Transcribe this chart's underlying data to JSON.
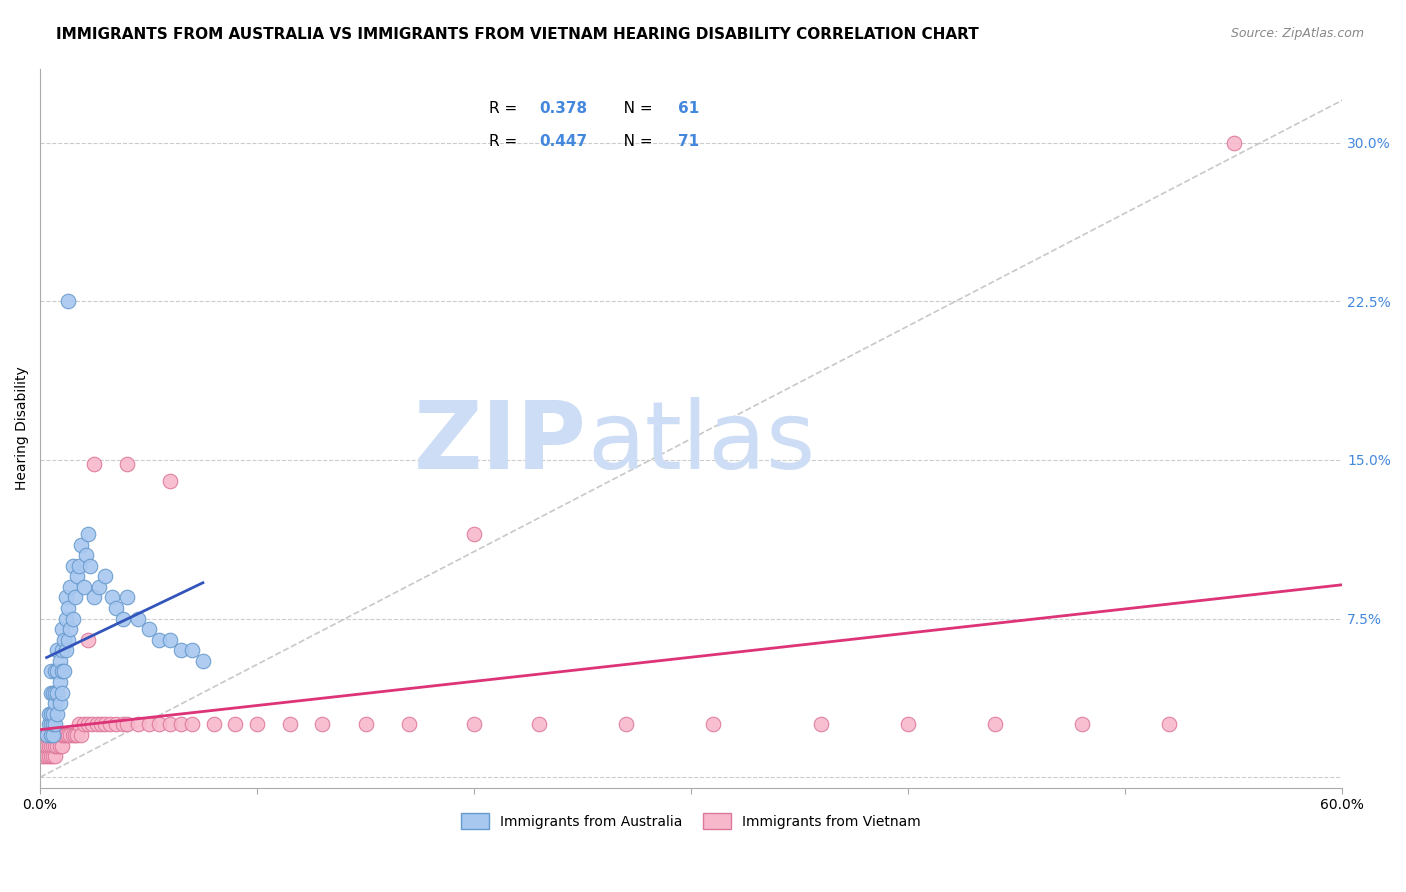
{
  "title": "IMMIGRANTS FROM AUSTRALIA VS IMMIGRANTS FROM VIETNAM HEARING DISABILITY CORRELATION CHART",
  "source": "Source: ZipAtlas.com",
  "ylabel": "Hearing Disability",
  "xlim": [
    0.0,
    0.6
  ],
  "ylim": [
    -0.005,
    0.335
  ],
  "australia_color": "#a8c8f0",
  "australia_edge": "#6699cc",
  "vietnam_color": "#f8b8cc",
  "vietnam_edge": "#dd7799",
  "australia_line_color": "#3355bb",
  "vietnam_line_color": "#dd3377",
  "diag_color": "#bbbbbb",
  "right_tick_color": "#4488dd",
  "legend_label_australia": "Immigrants from Australia",
  "legend_label_vietnam": "Immigrants from Vietnam",
  "title_fontsize": 11,
  "axis_label_fontsize": 10,
  "tick_fontsize": 10,
  "watermark_zip": "ZIP",
  "watermark_atlas": "atlas",
  "aus_x": [
    0.003,
    0.004,
    0.004,
    0.005,
    0.005,
    0.005,
    0.005,
    0.005,
    0.006,
    0.006,
    0.006,
    0.006,
    0.007,
    0.007,
    0.007,
    0.007,
    0.008,
    0.008,
    0.008,
    0.008,
    0.009,
    0.009,
    0.009,
    0.01,
    0.01,
    0.01,
    0.01,
    0.011,
    0.011,
    0.012,
    0.012,
    0.012,
    0.013,
    0.013,
    0.014,
    0.014,
    0.015,
    0.015,
    0.016,
    0.017,
    0.018,
    0.019,
    0.02,
    0.021,
    0.022,
    0.023,
    0.025,
    0.027,
    0.03,
    0.033,
    0.035,
    0.038,
    0.04,
    0.045,
    0.05,
    0.055,
    0.06,
    0.065,
    0.07,
    0.075,
    0.013
  ],
  "aus_y": [
    0.02,
    0.025,
    0.03,
    0.02,
    0.025,
    0.03,
    0.04,
    0.05,
    0.02,
    0.025,
    0.03,
    0.04,
    0.025,
    0.035,
    0.04,
    0.05,
    0.03,
    0.04,
    0.05,
    0.06,
    0.035,
    0.045,
    0.055,
    0.04,
    0.05,
    0.06,
    0.07,
    0.05,
    0.065,
    0.06,
    0.075,
    0.085,
    0.065,
    0.08,
    0.07,
    0.09,
    0.075,
    0.1,
    0.085,
    0.095,
    0.1,
    0.11,
    0.09,
    0.105,
    0.115,
    0.1,
    0.085,
    0.09,
    0.095,
    0.085,
    0.08,
    0.075,
    0.085,
    0.075,
    0.07,
    0.065,
    0.065,
    0.06,
    0.06,
    0.055,
    0.225
  ],
  "viet_x": [
    0.001,
    0.002,
    0.002,
    0.003,
    0.003,
    0.003,
    0.004,
    0.004,
    0.004,
    0.005,
    0.005,
    0.005,
    0.006,
    0.006,
    0.006,
    0.007,
    0.007,
    0.007,
    0.008,
    0.008,
    0.009,
    0.009,
    0.01,
    0.01,
    0.011,
    0.012,
    0.013,
    0.014,
    0.015,
    0.016,
    0.017,
    0.018,
    0.019,
    0.02,
    0.022,
    0.024,
    0.026,
    0.028,
    0.03,
    0.032,
    0.035,
    0.038,
    0.04,
    0.045,
    0.05,
    0.055,
    0.06,
    0.065,
    0.07,
    0.08,
    0.09,
    0.1,
    0.115,
    0.13,
    0.15,
    0.17,
    0.2,
    0.23,
    0.27,
    0.31,
    0.36,
    0.4,
    0.44,
    0.48,
    0.52,
    0.025,
    0.04,
    0.06,
    0.2,
    0.55,
    0.022
  ],
  "viet_y": [
    0.01,
    0.01,
    0.015,
    0.01,
    0.015,
    0.02,
    0.01,
    0.015,
    0.02,
    0.01,
    0.015,
    0.02,
    0.01,
    0.015,
    0.02,
    0.01,
    0.015,
    0.02,
    0.015,
    0.02,
    0.015,
    0.02,
    0.015,
    0.02,
    0.02,
    0.02,
    0.02,
    0.02,
    0.02,
    0.02,
    0.02,
    0.025,
    0.02,
    0.025,
    0.025,
    0.025,
    0.025,
    0.025,
    0.025,
    0.025,
    0.025,
    0.025,
    0.025,
    0.025,
    0.025,
    0.025,
    0.025,
    0.025,
    0.025,
    0.025,
    0.025,
    0.025,
    0.025,
    0.025,
    0.025,
    0.025,
    0.025,
    0.025,
    0.025,
    0.025,
    0.025,
    0.025,
    0.025,
    0.025,
    0.025,
    0.148,
    0.148,
    0.14,
    0.115,
    0.3,
    0.065
  ]
}
